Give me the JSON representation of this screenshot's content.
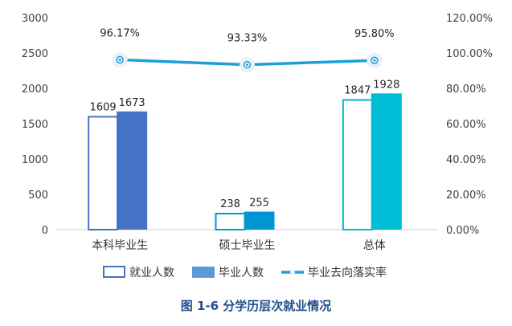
{
  "caption": "图 1-6  分学历层次就业情况",
  "chart_data": {
    "type": "bar",
    "categories": [
      "本科毕业生",
      "硕士毕业生",
      "总体"
    ],
    "series": [
      {
        "name": "就业人数",
        "kind": "bar",
        "style": "outline",
        "values": [
          1609,
          238,
          1847
        ],
        "data_labels": [
          "1609",
          "238",
          "1847"
        ]
      },
      {
        "name": "毕业人数",
        "kind": "bar",
        "style": "filled",
        "values": [
          1673,
          255,
          1928
        ],
        "data_labels": [
          "1673",
          "255",
          "1928"
        ]
      },
      {
        "name": "毕业去向落实率",
        "kind": "line",
        "axis": "right",
        "values": [
          96.17,
          93.33,
          95.8
        ],
        "data_labels": [
          "96.17%",
          "93.33%",
          "95.80%"
        ]
      }
    ],
    "bar_colors": [
      [
        "#4472c4",
        "#4472c4"
      ],
      [
        "#0096d6",
        "#0096d6"
      ],
      [
        "#00b8d4",
        "#00bcd4"
      ]
    ],
    "line_color": "#1aa0db",
    "legend_colors": {
      "outline": "#4472c4",
      "filled": "#5b9bd5",
      "line": "#1aa0db"
    },
    "ylim": [
      0,
      3000
    ],
    "y_ticks": [
      "0",
      "500",
      "1000",
      "1500",
      "2000",
      "2500",
      "3000"
    ],
    "y2lim": [
      0,
      120
    ],
    "y2_ticks": [
      "0.00%",
      "20.00%",
      "40.00%",
      "60.00%",
      "80.00%",
      "100.00%",
      "120.00%"
    ],
    "grid": false,
    "legend_position": "bottom"
  }
}
